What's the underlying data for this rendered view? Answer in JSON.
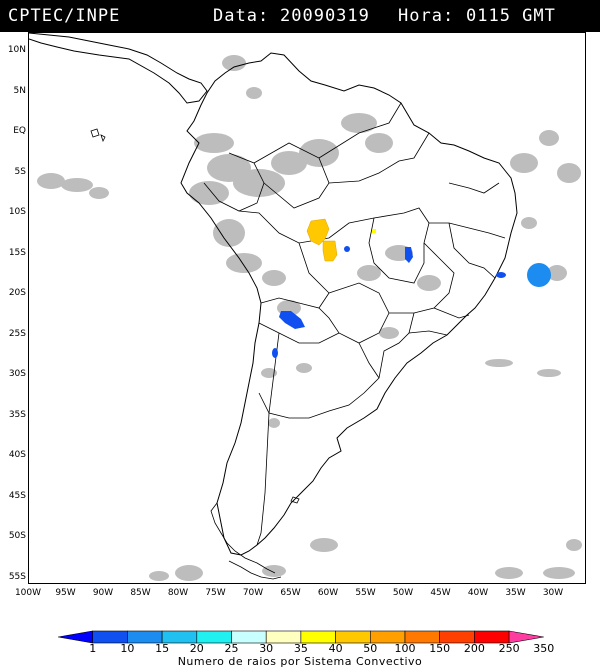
{
  "header": {
    "source": "CPTEC/INPE",
    "date_label": "Data:",
    "date": "20090319",
    "time_label": "Hora:",
    "time": "0115 GMT"
  },
  "map": {
    "lat_labels": [
      "10N",
      "5N",
      "EQ",
      "5S",
      "10S",
      "15S",
      "20S",
      "25S",
      "30S",
      "35S",
      "40S",
      "45S",
      "50S",
      "55S"
    ],
    "lon_labels": [
      "100W",
      "95W",
      "90W",
      "85W",
      "80W",
      "75W",
      "70W",
      "65W",
      "60W",
      "55W",
      "50W",
      "45W",
      "40W",
      "35W",
      "30W"
    ]
  },
  "colorbar": {
    "labels": [
      "1",
      "10",
      "15",
      "20",
      "25",
      "30",
      "35",
      "40",
      "50",
      "100",
      "150",
      "200",
      "250",
      "350"
    ],
    "colors": [
      "#0000ff",
      "#1050f0",
      "#1c8cf0",
      "#20c0f0",
      "#20f0f0",
      "#c8ffff",
      "#ffffc0",
      "#ffff00",
      "#ffc800",
      "#ffa000",
      "#ff7800",
      "#ff4000",
      "#ff0000",
      "#ff3ca0"
    ],
    "title": "Numero de raios por Sistema Convectivo"
  }
}
